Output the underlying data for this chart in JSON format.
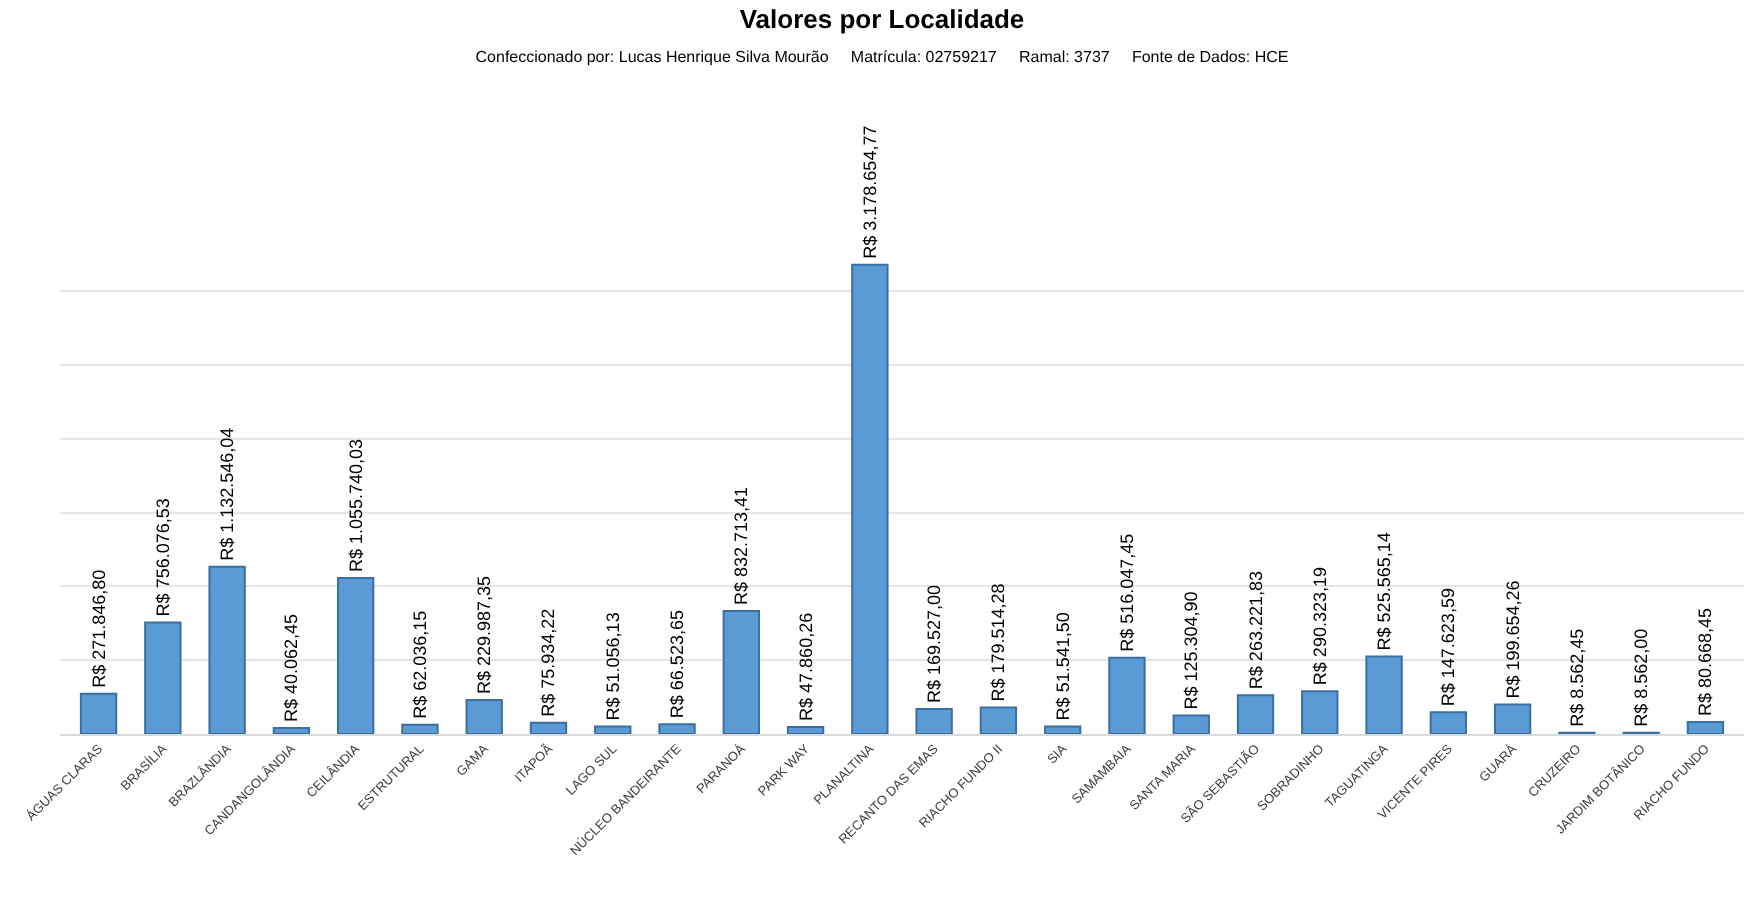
{
  "chart_data": {
    "type": "bar",
    "title": "Valores por Localidade",
    "subtitle": "Confeccionado por: Lucas Henrique Silva Mourão     Matrícula: 02759217     Ramal: 3737     Fonte de Dados: HCE",
    "categories": [
      "ÁGUAS CLARAS",
      "BRASÍLIA",
      "BRAZLÂNDIA",
      "CANDANGOLÂNDIA",
      "CEILÂNDIA",
      "ESTRUTURAL",
      "GAMA",
      "ITAPOÃ",
      "LAGO SUL",
      "NÚCLEO BANDEIRANTE",
      "PARANOÁ",
      "PARK WAY",
      "PLANALTINA",
      "RECANTO DAS EMAS",
      "RIACHO FUNDO II",
      "SIA",
      "SAMAMBAIA",
      "SANTA MARIA",
      "SÃO SEBASTIÃO",
      "SOBRADINHO",
      "TAGUATINGA",
      "VICENTE PIRES",
      "GUARÁ",
      "CRUZEIRO",
      "JARDIM BOTÂNICO",
      "RIACHO FUNDO"
    ],
    "values": [
      271846.8,
      756076.53,
      1132546.04,
      40062.45,
      1055740.03,
      62036.15,
      229987.35,
      75934.22,
      51056.13,
      66523.65,
      832713.41,
      47860.26,
      3178654.77,
      169527.0,
      179514.28,
      51541.5,
      516047.45,
      125304.9,
      263221.83,
      290323.19,
      525565.14,
      147623.59,
      199654.26,
      8562.45,
      8562.0,
      80668.45
    ],
    "value_labels": [
      "R$ 271.846,80",
      "R$ 756.076,53",
      "R$ 1.132.546,04",
      "R$ 40.062,45",
      "R$ 1.055.740,03",
      "R$ 62.036,15",
      "R$ 229.987,35",
      "R$ 75.934,22",
      "R$ 51.056,13",
      "R$ 66.523,65",
      "R$ 832.713,41",
      "R$ 47.860,26",
      "R$ 3.178.654,77",
      "R$ 169.527,00",
      "R$ 179.514,28",
      "R$ 51.541,50",
      "R$ 516.047,45",
      "R$ 125.304,90",
      "R$ 263.221,83",
      "R$ 290.323,19",
      "R$ 525.565,14",
      "R$ 147.623,59",
      "R$ 199.654,26",
      "R$ 8.562,45",
      "R$ 8.562,00",
      "R$ 80.668,45"
    ],
    "color": "#5b9bd5",
    "grid": "y",
    "tick_labels": "x",
    "legend": false
  }
}
